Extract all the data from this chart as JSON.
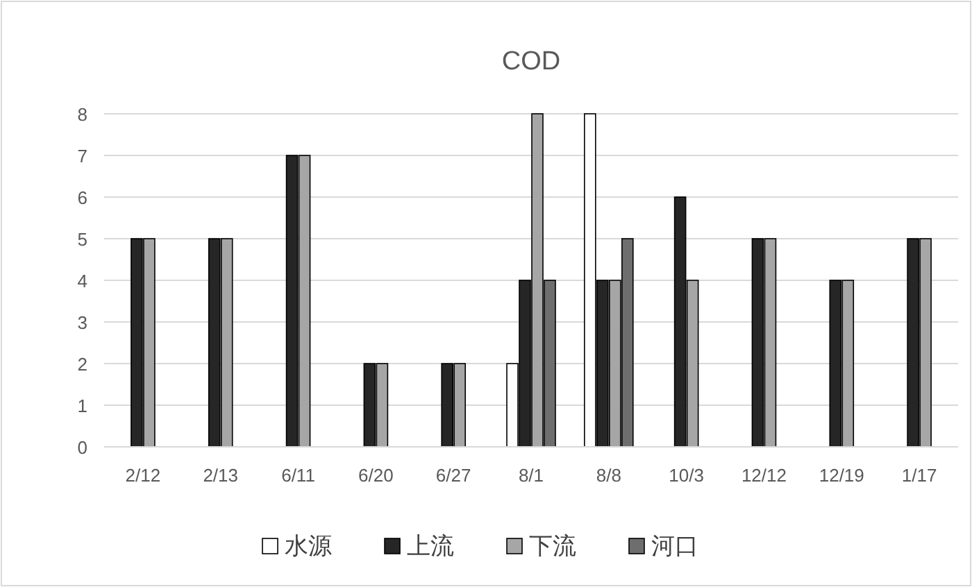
{
  "chart_data": {
    "type": "bar",
    "title": "COD",
    "categories": [
      "2/12",
      "2/13",
      "6/11",
      "6/20",
      "6/27",
      "8/1",
      "8/8",
      "10/3",
      "12/12",
      "12/19",
      "1/17"
    ],
    "series": [
      {
        "name": "水源",
        "color": "#ffffff",
        "values": [
          null,
          null,
          null,
          null,
          null,
          2,
          8,
          null,
          null,
          null,
          null
        ]
      },
      {
        "name": "上流",
        "color": "#262626",
        "values": [
          5,
          5,
          7,
          2,
          2,
          4,
          4,
          6,
          5,
          4,
          5
        ]
      },
      {
        "name": "下流",
        "color": "#a6a6a6",
        "values": [
          5,
          5,
          7,
          2,
          2,
          8,
          4,
          4,
          5,
          4,
          5
        ]
      },
      {
        "name": "河口",
        "color": "#6e6e6e",
        "values": [
          null,
          null,
          null,
          null,
          null,
          4,
          5,
          null,
          null,
          null,
          null
        ]
      }
    ],
    "ylim": [
      0,
      8
    ],
    "yticks": [
      0,
      1,
      2,
      3,
      4,
      5,
      6,
      7,
      8
    ],
    "grid": "y",
    "legend": "bottom"
  }
}
